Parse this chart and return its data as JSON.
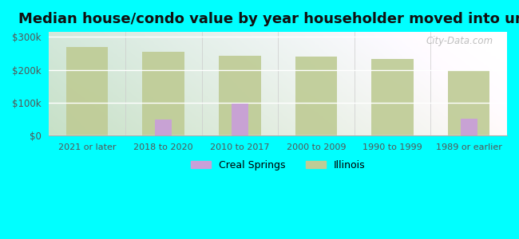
{
  "title": "Median house/condo value by year householder moved into unit",
  "categories": [
    "2021 or later",
    "2018 to 2020",
    "2010 to 2017",
    "2000 to 2009",
    "1990 to 1999",
    "1989 or earlier"
  ],
  "creal_springs": [
    0,
    50000,
    97000,
    0,
    0,
    52000
  ],
  "illinois": [
    270000,
    255000,
    243000,
    240000,
    232000,
    200000
  ],
  "creal_springs_color": "#c9a0d8",
  "illinois_color": "#bfcc96",
  "background_color": "#00ffff",
  "plot_bg_color": "#e8f5e2",
  "yticks": [
    0,
    100000,
    200000,
    300000
  ],
  "ylabels": [
    "$0",
    "$100k",
    "$200k",
    "$300k"
  ],
  "ylim": [
    0,
    315000
  ],
  "title_fontsize": 13,
  "watermark": "City-Data.com",
  "legend_labels": [
    "Creal Springs",
    "Illinois"
  ],
  "illinois_bar_width": 0.55,
  "creal_bar_width": 0.22
}
